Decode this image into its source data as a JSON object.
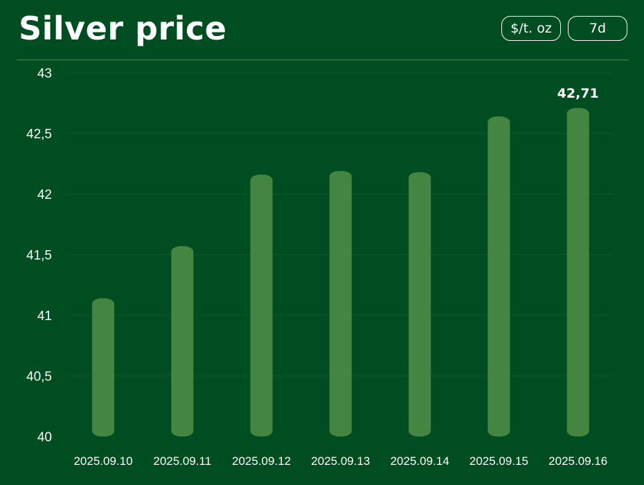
{
  "header": {
    "title": "Silver price",
    "unit_button": "$/t. oz",
    "range_button": "7d"
  },
  "colors": {
    "background": "#004d22",
    "bar": "#448641",
    "grid": "#0b5a2a",
    "divider": "#4f8a55"
  },
  "chart_data": {
    "type": "bar",
    "categories": [
      "2025.09.10",
      "2025.09.11",
      "2025.09.12",
      "2025.09.13",
      "2025.09.14",
      "2025.09.15",
      "2025.09.16"
    ],
    "values": [
      41.14,
      41.57,
      42.16,
      42.19,
      42.18,
      42.64,
      42.71
    ],
    "ylim": [
      40,
      43
    ],
    "yticks": [
      "40",
      "40,5",
      "41",
      "41,5",
      "42",
      "42,5",
      "43"
    ],
    "data_labels": [
      {
        "index": 6,
        "text": "42,71"
      }
    ],
    "grid": true,
    "title": "",
    "xlabel": "",
    "ylabel": ""
  }
}
